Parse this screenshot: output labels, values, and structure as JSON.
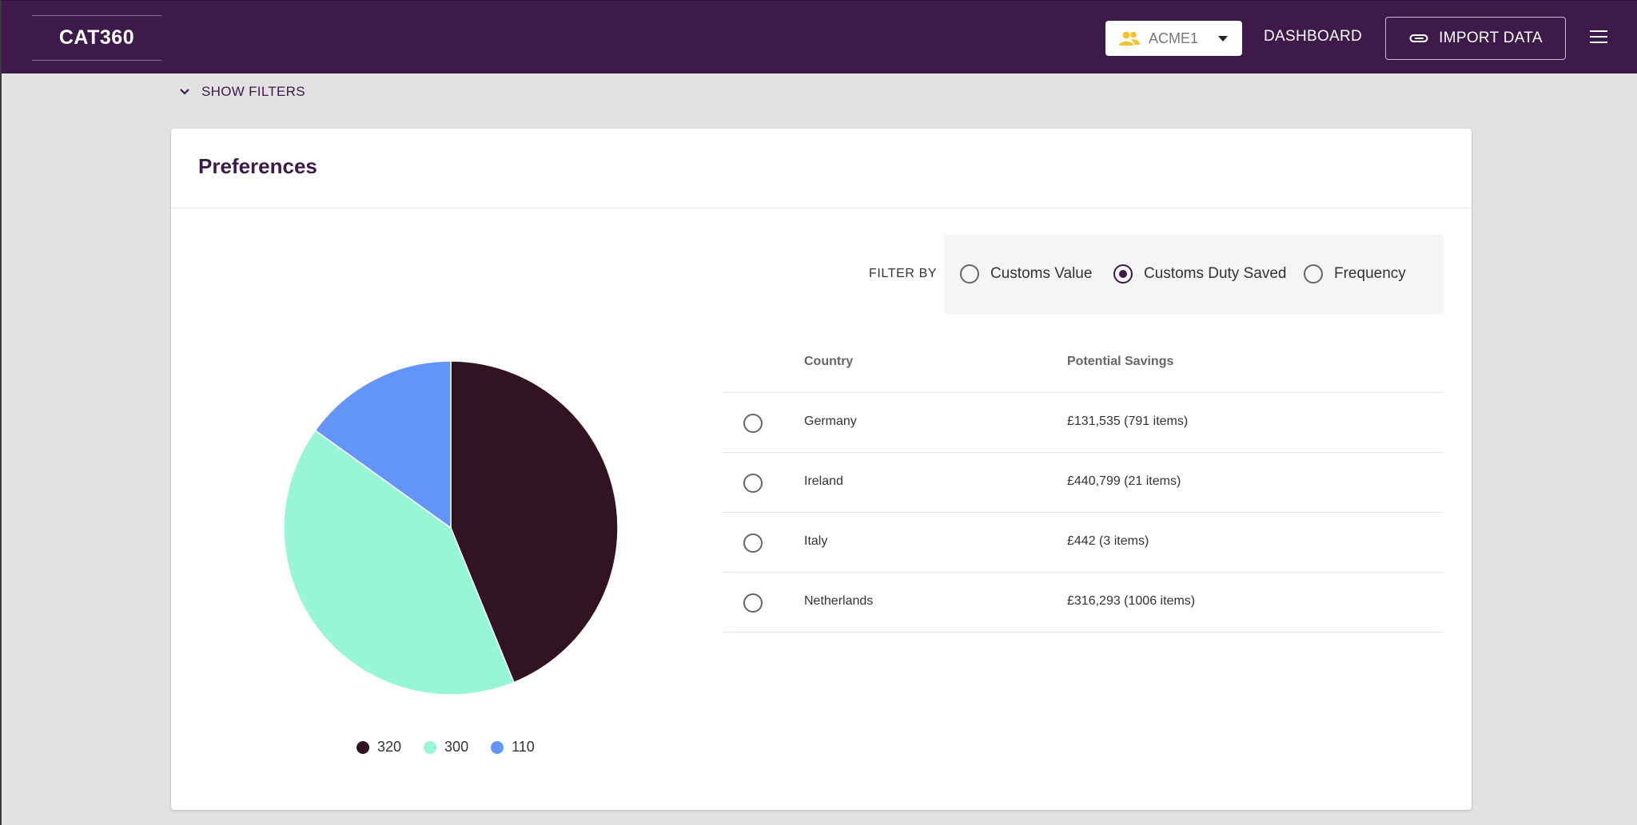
{
  "header": {
    "logo": "CAT360",
    "account": "ACME1",
    "dashboard_label": "DASHBOARD",
    "import_label": "IMPORT DATA"
  },
  "filters_toggle": "SHOW FILTERS",
  "card": {
    "title": "Preferences",
    "filter_by_label": "FILTER BY",
    "filter_options": [
      {
        "label": "Customs Value",
        "selected": false
      },
      {
        "label": "Customs Duty Saved",
        "selected": true
      },
      {
        "label": "Frequency",
        "selected": false
      }
    ],
    "table": {
      "headers": [
        "Country",
        "Potential Savings"
      ],
      "rows": [
        {
          "country": "Germany",
          "savings": "£131,535 (791 items)"
        },
        {
          "country": "Ireland",
          "savings": "£440,799 (21 items)"
        },
        {
          "country": "Italy",
          "savings": "£442 (3 items)"
        },
        {
          "country": "Netherlands",
          "savings": "£316,293 (1006 items)"
        }
      ]
    }
  },
  "chart_data": {
    "type": "pie",
    "values": [
      320,
      300,
      110
    ],
    "labels": [
      "320",
      "300",
      "110"
    ],
    "colors": [
      "#311321",
      "#97f6d8",
      "#6394f8"
    ],
    "legend_placement": "bottom"
  },
  "colors": {
    "brand": "#3d1a4a",
    "background": "#e2e2e2"
  },
  "icons": {
    "account": "users-icon",
    "import": "paperclip-icon",
    "menu": "hamburger-menu-icon",
    "filters": "chevron-down-icon"
  }
}
